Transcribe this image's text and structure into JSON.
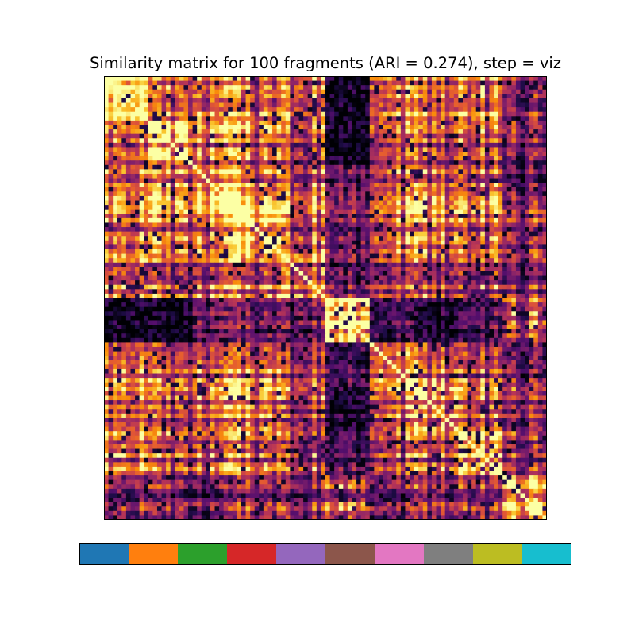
{
  "chart_data": {
    "type": "heatmap",
    "title": "Similarity matrix for 100 fragments (ARI = 0.274), step = viz",
    "n_fragments": 100,
    "colormap": "inferno",
    "value_range": [
      0,
      1
    ],
    "blocks": [
      {
        "start": 0,
        "size": 10,
        "within": 0.9
      },
      {
        "start": 10,
        "size": 10,
        "within": 0.85
      },
      {
        "start": 20,
        "size": 10,
        "within": 0.72
      },
      {
        "start": 30,
        "size": 10,
        "within": 0.8
      },
      {
        "start": 40,
        "size": 10,
        "within": 0.7
      },
      {
        "start": 50,
        "size": 10,
        "within": 0.93
      },
      {
        "start": 60,
        "size": 10,
        "within": 0.75
      },
      {
        "start": 70,
        "size": 10,
        "within": 0.72
      },
      {
        "start": 80,
        "size": 10,
        "within": 0.8
      },
      {
        "start": 90,
        "size": 10,
        "within": 0.85
      }
    ],
    "block_similarity": [
      [
        0.9,
        0.55,
        0.6,
        0.55,
        0.62,
        0.05,
        0.65,
        0.55,
        0.6,
        0.35
      ],
      [
        0.55,
        0.85,
        0.6,
        0.6,
        0.5,
        0.05,
        0.55,
        0.5,
        0.5,
        0.35
      ],
      [
        0.6,
        0.6,
        0.72,
        0.65,
        0.55,
        0.25,
        0.6,
        0.6,
        0.55,
        0.3
      ],
      [
        0.55,
        0.6,
        0.65,
        0.8,
        0.55,
        0.3,
        0.62,
        0.65,
        0.55,
        0.4
      ],
      [
        0.62,
        0.5,
        0.55,
        0.55,
        0.7,
        0.3,
        0.5,
        0.5,
        0.45,
        0.4
      ],
      [
        0.05,
        0.05,
        0.25,
        0.3,
        0.3,
        0.93,
        0.2,
        0.1,
        0.2,
        0.5
      ],
      [
        0.65,
        0.55,
        0.6,
        0.62,
        0.5,
        0.2,
        0.75,
        0.65,
        0.55,
        0.35
      ],
      [
        0.55,
        0.5,
        0.6,
        0.65,
        0.5,
        0.1,
        0.65,
        0.72,
        0.55,
        0.4
      ],
      [
        0.6,
        0.5,
        0.55,
        0.55,
        0.45,
        0.2,
        0.55,
        0.55,
        0.8,
        0.4
      ],
      [
        0.35,
        0.35,
        0.3,
        0.4,
        0.4,
        0.5,
        0.35,
        0.4,
        0.4,
        0.85
      ]
    ],
    "cluster_colors": [
      "#1f77b4",
      "#ff7f0e",
      "#2ca02c",
      "#d62728",
      "#9467bd",
      "#8c564b",
      "#e377c2",
      "#7f7f7f",
      "#bcbd22",
      "#17becf"
    ]
  }
}
